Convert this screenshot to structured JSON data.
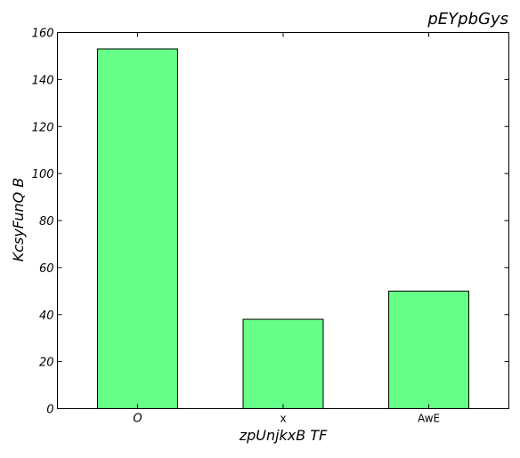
{
  "chart_data": {
    "type": "bar",
    "title": "pEYpbGys",
    "xlabel": "zpUnjkxB TF",
    "ylabel": "KcsyFunQ B",
    "categories": [
      "O",
      "x",
      "AwE"
    ],
    "values": [
      153,
      38,
      50
    ],
    "ylim": [
      0,
      160
    ],
    "yticks": [
      "0",
      "20",
      "40",
      "60",
      "80",
      "100",
      "120",
      "140",
      "160"
    ],
    "grid": false,
    "legend": "none",
    "colors": {
      "bar_fill": "#66ff88",
      "bar_edge": "#000000",
      "axes": "#000000",
      "background": "#ffffff"
    }
  }
}
